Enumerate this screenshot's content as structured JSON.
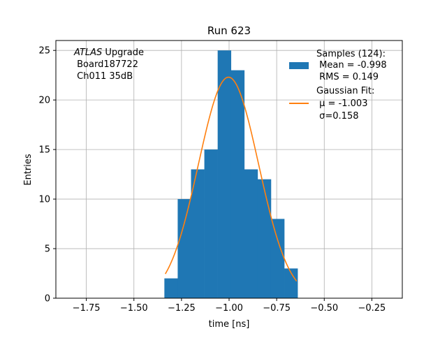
{
  "chart_data": {
    "type": "histogram",
    "title": "Run 623",
    "xlabel": "time [ns]",
    "ylabel": "Entries",
    "xlim": [
      -1.91,
      -0.09
    ],
    "ylim": [
      0,
      26
    ],
    "grid": true,
    "x_ticks": [
      -1.75,
      -1.5,
      -1.25,
      -1.0,
      -0.75,
      -0.5,
      -0.25
    ],
    "x_tick_labels": [
      "−1.75",
      "−1.50",
      "−1.25",
      "−1.00",
      "−0.75",
      "−0.50",
      "−0.25"
    ],
    "y_ticks": [
      0,
      5,
      10,
      15,
      20,
      25
    ],
    "y_tick_labels": [
      "0",
      "5",
      "10",
      "15",
      "20",
      "25"
    ],
    "bins": [
      {
        "x0": -1.34,
        "x1": -1.27,
        "count": 2
      },
      {
        "x0": -1.27,
        "x1": -1.2,
        "count": 10
      },
      {
        "x0": -1.2,
        "x1": -1.13,
        "count": 13
      },
      {
        "x0": -1.13,
        "x1": -1.06,
        "count": 15
      },
      {
        "x0": -1.06,
        "x1": -0.99,
        "count": 25
      },
      {
        "x0": -0.99,
        "x1": -0.92,
        "count": 23
      },
      {
        "x0": -0.92,
        "x1": -0.85,
        "count": 13
      },
      {
        "x0": -0.85,
        "x1": -0.78,
        "count": 12
      },
      {
        "x0": -0.78,
        "x1": -0.71,
        "count": 8
      },
      {
        "x0": -0.71,
        "x1": -0.64,
        "count": 3
      }
    ],
    "fit": {
      "amplitude": 22.3,
      "mu": -1.003,
      "sigma": 0.158,
      "x_range": [
        -1.335,
        -0.645
      ]
    },
    "colors": {
      "histogram": "#1f77b4",
      "fit": "#ff7f0e",
      "grid": "#b0b0b0"
    },
    "legend": {
      "placement": "top-right",
      "entries": [
        {
          "kind": "patch",
          "lines": [
            "Samples (124):",
            " Mean = -0.998",
            " RMS = 0.149"
          ]
        },
        {
          "kind": "line",
          "lines": [
            "Gaussian Fit:",
            " μ = -1.003",
            " σ=0.158"
          ]
        }
      ]
    },
    "annotation": {
      "italic": "ATLAS",
      "rest": " Upgrade",
      "line2": " Board187722",
      "line3": " Ch011 35dB"
    }
  }
}
